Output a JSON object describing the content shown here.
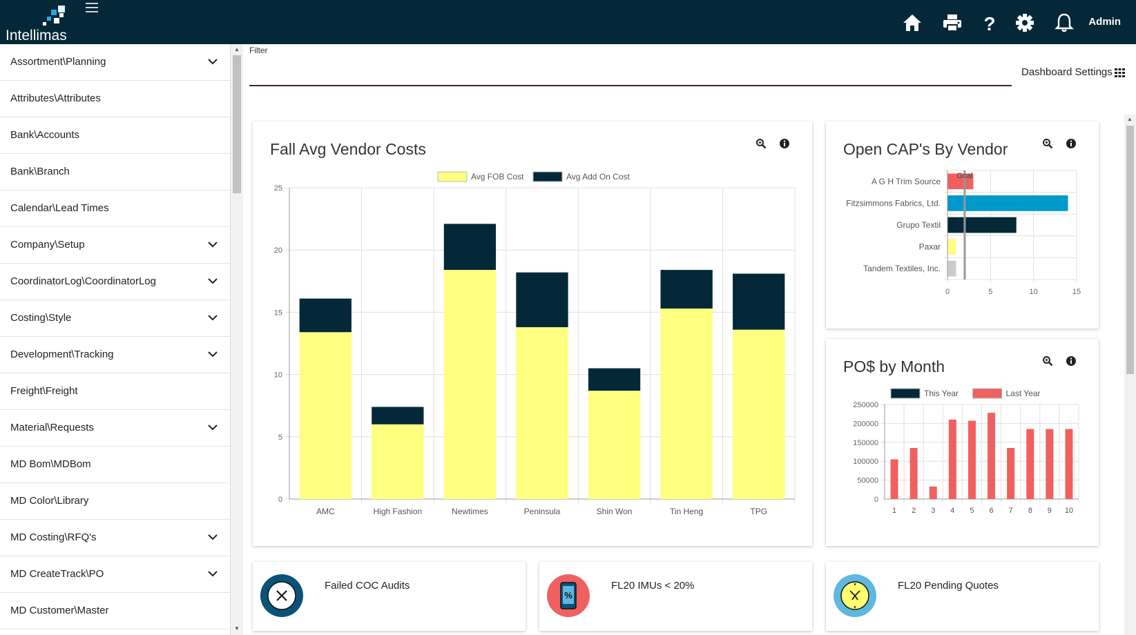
{
  "app": {
    "brand": "Intellimas",
    "user": "Admin"
  },
  "icons": {
    "home": "home-icon",
    "print": "printer-icon",
    "help": "help-icon",
    "settings": "gear-icon",
    "notifications": "bell-icon"
  },
  "sidebar": {
    "items": [
      {
        "label": "Assortment\\Planning",
        "expandable": true
      },
      {
        "label": "Attributes\\Attributes",
        "expandable": false
      },
      {
        "label": "Bank\\Accounts",
        "expandable": false
      },
      {
        "label": "Bank\\Branch",
        "expandable": false
      },
      {
        "label": "Calendar\\Lead Times",
        "expandable": false
      },
      {
        "label": "Company\\Setup",
        "expandable": true
      },
      {
        "label": "CoordinatorLog\\CoordinatorLog",
        "expandable": true
      },
      {
        "label": "Costing\\Style",
        "expandable": true
      },
      {
        "label": "Development\\Tracking",
        "expandable": true
      },
      {
        "label": "Freight\\Freight",
        "expandable": false
      },
      {
        "label": "Material\\Requests",
        "expandable": true
      },
      {
        "label": "MD Bom\\MDBom",
        "expandable": false
      },
      {
        "label": "MD Color\\Library",
        "expandable": false
      },
      {
        "label": "MD Costing\\RFQ's",
        "expandable": true
      },
      {
        "label": "MD CreateTrack\\PO",
        "expandable": true
      },
      {
        "label": "MD Customer\\Master",
        "expandable": false
      }
    ]
  },
  "filter": {
    "label": "Filter",
    "value": ""
  },
  "dashboard_settings": {
    "label": "Dashboard Settings"
  },
  "cards": {
    "vendor_costs": {
      "title": "Fall Avg Vendor Costs"
    },
    "open_caps": {
      "title": "Open CAP's By Vendor"
    },
    "pos_month": {
      "title": "PO$ by Month"
    },
    "kpi": [
      {
        "label": "Failed COC Audits",
        "icon": "close-icon",
        "color": "#0a5378"
      },
      {
        "label": "FL20 IMUs < 20%",
        "icon": "phone-percent-icon",
        "color": "#f06060"
      },
      {
        "label": "FL20 Pending Quotes",
        "icon": "clock-icon",
        "color": "#5eb8e0"
      }
    ]
  },
  "chart_data": [
    {
      "type": "bar",
      "stacked": true,
      "title": "Fall Avg Vendor Costs",
      "categories": [
        "AMC",
        "High Fashion",
        "Newtimes",
        "Peninsula",
        "Shin Won",
        "Tin Heng",
        "TPG"
      ],
      "series": [
        {
          "name": "Avg FOB Cost",
          "color": "#ffff80",
          "values": [
            13.4,
            6.0,
            18.4,
            13.8,
            8.7,
            15.3,
            13.6
          ]
        },
        {
          "name": "Avg Add On Cost",
          "color": "#042838",
          "values": [
            2.7,
            1.4,
            3.7,
            4.4,
            1.8,
            3.1,
            4.5
          ]
        }
      ],
      "ylim": [
        0,
        25
      ],
      "yticks": [
        0,
        5,
        10,
        15,
        20,
        25
      ],
      "legend": "top",
      "grid": true
    },
    {
      "type": "bar",
      "orientation": "horizontal",
      "title": "Open CAP's By Vendor",
      "categories": [
        "A G H Trim Source",
        "Fitzsimmons Fabrics, Ltd.",
        "Grupo Textil",
        "Paxar",
        "Tandem Textiles, Inc."
      ],
      "values": [
        3,
        14,
        8,
        1,
        1
      ],
      "colors": [
        "#f06060",
        "#0099cc",
        "#042838",
        "#ffff80",
        "#cccccc"
      ],
      "goal": {
        "label": "Goal",
        "value": 2
      },
      "xlim": [
        0,
        15
      ],
      "xticks": [
        0,
        5,
        10,
        15
      ],
      "grid": true
    },
    {
      "type": "bar",
      "title": "PO$ by Month",
      "categories": [
        "1",
        "2",
        "3",
        "4",
        "5",
        "6",
        "7",
        "8",
        "9",
        "10"
      ],
      "series": [
        {
          "name": "This Year",
          "color": "#042838",
          "values": [
            0,
            0,
            0,
            0,
            0,
            0,
            0,
            0,
            0,
            0
          ]
        },
        {
          "name": "Last Year",
          "color": "#f06060",
          "values": [
            105000,
            135000,
            33000,
            210000,
            207000,
            228000,
            135000,
            185000,
            185000,
            185000
          ]
        }
      ],
      "ylim": [
        0,
        250000
      ],
      "yticks": [
        0,
        50000,
        100000,
        150000,
        200000,
        250000
      ],
      "legend": "top",
      "grid": true
    }
  ]
}
